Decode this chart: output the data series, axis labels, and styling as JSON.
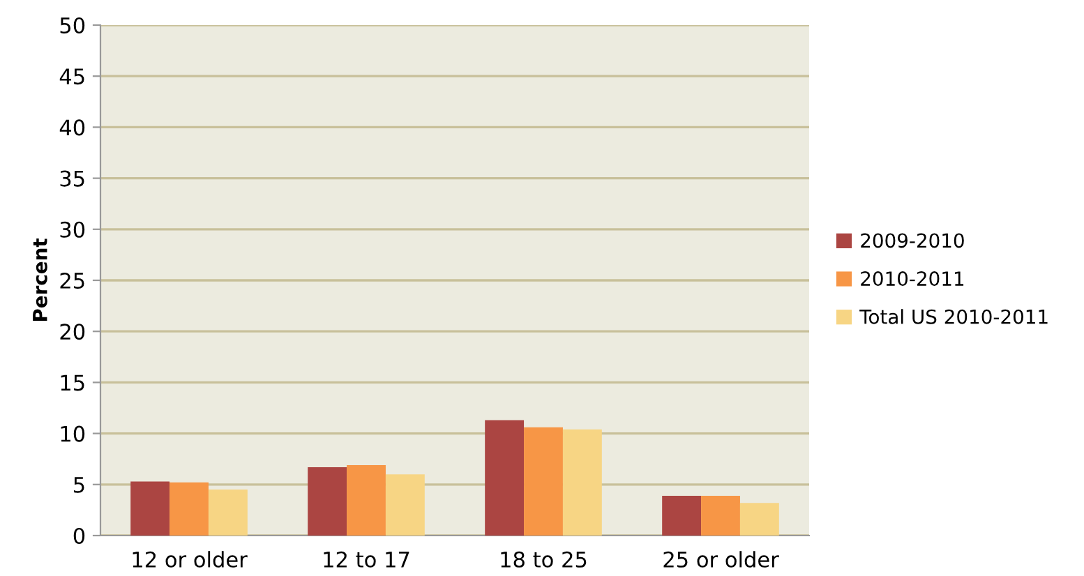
{
  "chart_data": {
    "type": "bar",
    "ylabel": "Percent",
    "categories": [
      "12 or older",
      "12 to 17",
      "18 to 25",
      "25 or older"
    ],
    "series": [
      {
        "name": "2009-2010",
        "color": "#ab4542",
        "values": [
          5.3,
          6.7,
          11.3,
          3.9
        ]
      },
      {
        "name": "2010-2011",
        "color": "#f79646",
        "values": [
          5.2,
          6.9,
          10.6,
          3.9
        ]
      },
      {
        "name": "Total US 2010-2011",
        "color": "#f7d584",
        "values": [
          4.5,
          6.0,
          10.4,
          3.2
        ]
      }
    ],
    "ylim": [
      0,
      50
    ],
    "yticks": [
      0,
      5,
      10,
      15,
      20,
      25,
      30,
      35,
      40,
      45,
      50
    ],
    "grid": "y",
    "legend": "right"
  }
}
